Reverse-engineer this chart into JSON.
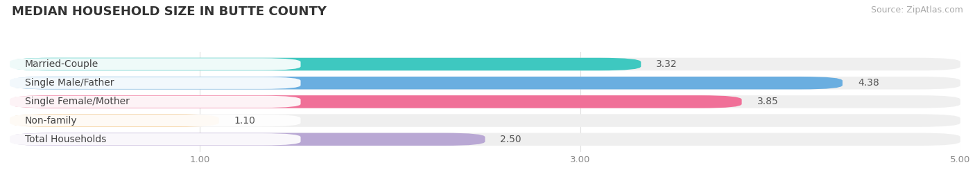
{
  "title": "MEDIAN HOUSEHOLD SIZE IN BUTTE COUNTY",
  "source": "Source: ZipAtlas.com",
  "categories": [
    "Married-Couple",
    "Single Male/Father",
    "Single Female/Mother",
    "Non-family",
    "Total Households"
  ],
  "values": [
    3.32,
    4.38,
    3.85,
    1.1,
    2.5
  ],
  "bar_colors": [
    "#3ec8c0",
    "#6aaee0",
    "#f07098",
    "#f5c98a",
    "#b9a8d4"
  ],
  "xlim": [
    0,
    5.0
  ],
  "xticks": [
    1.0,
    3.0,
    5.0
  ],
  "xtick_labels": [
    "1.00",
    "3.00",
    "5.00"
  ],
  "background_color": "#ffffff",
  "bar_bg_color": "#efefef",
  "title_fontsize": 13,
  "source_fontsize": 9,
  "label_fontsize": 10,
  "value_fontsize": 10
}
